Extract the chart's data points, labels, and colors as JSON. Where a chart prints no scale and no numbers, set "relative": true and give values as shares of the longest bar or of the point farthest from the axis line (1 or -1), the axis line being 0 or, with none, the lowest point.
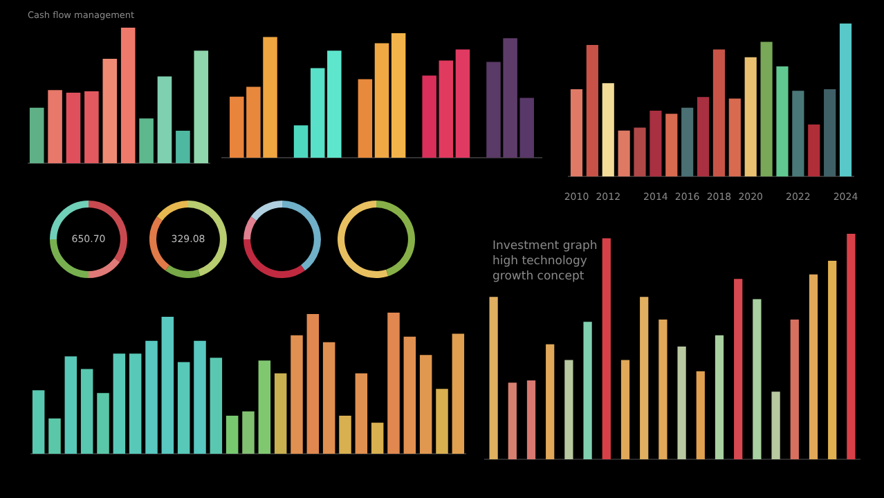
{
  "chart_data": [
    {
      "type": "bar",
      "title": "Cash flow management",
      "relative": true,
      "tick_labels": false,
      "categories": [
        null,
        null,
        null,
        null,
        null,
        null,
        null,
        null,
        null,
        null
      ],
      "values": [
        0.41,
        0.54,
        0.52,
        0.53,
        0.77,
        1,
        0.33,
        0.64,
        0.24,
        0.83
      ],
      "colors": [
        "#5fb087",
        "#e8786a",
        "#e0505c",
        "#e25a60",
        "#ee8a74",
        "#ef7a6c",
        "#5db88e",
        "#7fd0b0",
        "#4fb8a0",
        "#8fd6ac"
      ]
    },
    {
      "type": "bar",
      "relative": true,
      "tick_labels": false,
      "categories": [
        null,
        null,
        null,
        null,
        null
      ],
      "series": [
        {
          "values": [
            0.49,
            0.26,
            0.63,
            0.66,
            0.77
          ],
          "colors": [
            "#e8843c",
            "#4fd8c0",
            "#e88a3c",
            "#d8305a",
            "#5a3a66"
          ]
        },
        {
          "values": [
            0.57,
            0.72,
            0.92,
            0.78,
            0.96
          ],
          "colors": [
            "#e8883c",
            "#58e0c8",
            "#f0a844",
            "#e03a5e",
            "#5e3c6a"
          ]
        },
        {
          "values": [
            0.97,
            0.86,
            1,
            0.87,
            0.48
          ],
          "colors": [
            "#efa540",
            "#5ee6cc",
            "#f2b44a",
            "#e03a62",
            "#583868"
          ]
        }
      ]
    },
    {
      "type": "bar",
      "relative": true,
      "tick_labels": "x",
      "categories": [
        "2010",
        null,
        "2012",
        null,
        null,
        "2014",
        null,
        "2016",
        null,
        "2018",
        null,
        "2020",
        null,
        null,
        "2022",
        null,
        null,
        "2024"
      ],
      "values": [
        0.57,
        0.86,
        0.61,
        0.3,
        0.32,
        0.43,
        0.41,
        0.45,
        0.52,
        0.83,
        0.51,
        0.78,
        0.88,
        0.72,
        0.56,
        0.34,
        0.57,
        1
      ],
      "colors": [
        "#e07a66",
        "#c85248",
        "#f2dc98",
        "#de7a64",
        "#b04848",
        "#a83040",
        "#d86a50",
        "#4a7074",
        "#a83040",
        "#c85448",
        "#d86a50",
        "#e8c070",
        "#78a858",
        "#60c890",
        "#4a7878",
        "#b02e38",
        "#406068",
        "#58c8c8"
      ]
    },
    {
      "type": "donut",
      "annotations": [
        "650.70"
      ],
      "categories": [
        null,
        null,
        null,
        null
      ],
      "values": [
        35,
        15,
        25,
        25
      ],
      "colors": [
        "#c84a50",
        "#e07a78",
        "#78b050",
        "#70d0b8"
      ]
    },
    {
      "type": "donut",
      "annotations": [
        "329.08"
      ],
      "categories": [
        null,
        null,
        null,
        null
      ],
      "values": [
        45,
        15,
        25,
        15
      ],
      "colors": [
        "#b8cc70",
        "#78a848",
        "#e07a48",
        "#e8b850"
      ]
    },
    {
      "type": "donut",
      "categories": [
        null,
        null,
        null,
        null
      ],
      "values": [
        40,
        35,
        10,
        15
      ],
      "colors": [
        "#70b0c8",
        "#c02a40",
        "#e08090",
        "#b0d0e0"
      ]
    },
    {
      "type": "donut",
      "categories": [
        null,
        null
      ],
      "values": [
        45,
        55
      ],
      "colors": [
        "#88b048",
        "#e8c060"
      ]
    },
    {
      "type": "bar",
      "relative": true,
      "tick_labels": false,
      "categories": [
        null,
        null,
        null,
        null,
        null,
        null,
        null,
        null,
        null,
        null,
        null,
        null,
        null,
        null,
        null,
        null,
        null,
        null,
        null,
        null,
        null,
        null,
        null,
        null,
        null,
        null,
        null
      ],
      "values": [
        0.45,
        0.25,
        0.69,
        0.6,
        0.43,
        0.71,
        0.71,
        0.8,
        0.97,
        0.65,
        0.8,
        0.68,
        0.27,
        0.3,
        0.66,
        0.57,
        0.84,
        0.99,
        0.79,
        0.27,
        0.57,
        0.22,
        1,
        0.83,
        0.7,
        0.46,
        0.85
      ],
      "colors": [
        "#58c8b0",
        "#5ac8a8",
        "#58c8b8",
        "#58c8b0",
        "#5ac8a8",
        "#58c8b8",
        "#58c8b8",
        "#58c8c0",
        "#58c8c0",
        "#58c8b8",
        "#58c8c0",
        "#5ac8b0",
        "#78c870",
        "#80c070",
        "#80c870",
        "#c8b050",
        "#e09050",
        "#e08850",
        "#e09050",
        "#d8b050",
        "#e09050",
        "#d8b050",
        "#e08850",
        "#e09050",
        "#e09850",
        "#d8b050",
        "#e0a050"
      ]
    },
    {
      "type": "bar",
      "title": "Investment graph high technology growth concept",
      "relative": true,
      "tick_labels": false,
      "categories": [
        null,
        null,
        null,
        null,
        null,
        null,
        null,
        null,
        null,
        null,
        null,
        null,
        null,
        null,
        null,
        null,
        null,
        null,
        null,
        null
      ],
      "grid": false,
      "values": [
        0.72,
        0.34,
        0.35,
        0.51,
        0.44,
        0.61,
        0.98,
        0.44,
        0.72,
        0.62,
        0.5,
        0.39,
        0.55,
        0.8,
        0.71,
        0.3,
        0.62,
        0.82,
        0.88,
        1
      ],
      "colors": [
        "#e0b060",
        "#d88070",
        "#d87870",
        "#e0a858",
        "#b8c8a0",
        "#80d0b0",
        "#d84048",
        "#e0a858",
        "#e0b060",
        "#e0a858",
        "#b8c8a0",
        "#e0a050",
        "#a8d0a0",
        "#d84850",
        "#a8d0a0",
        "#b8c8a0",
        "#d87060",
        "#e0a858",
        "#e0b050",
        "#d84048"
      ]
    }
  ]
}
